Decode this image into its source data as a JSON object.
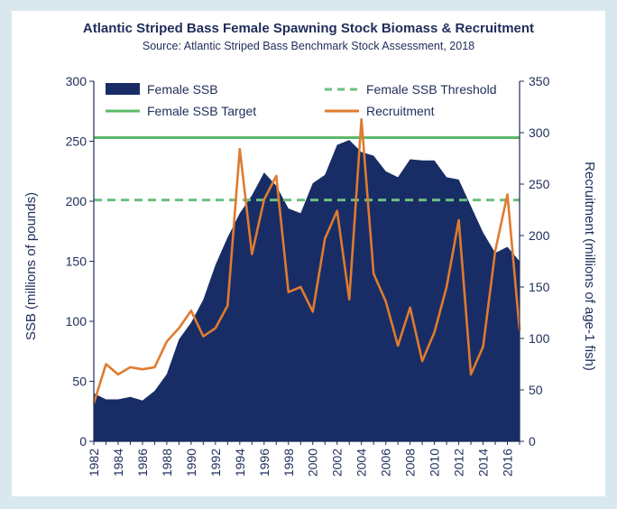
{
  "chart_data": {
    "type": "area",
    "title": "Atlantic Striped Bass Female Spawning Stock Biomass & Recruitment",
    "subtitle": "Source: Atlantic Striped  Bass Benchmark Stock Assessment, 2018",
    "xlabel": "",
    "ylabel": "SSB (millions of pounds)",
    "y2label": "Recruitment (millions of age-1 fish)",
    "ylim": [
      0,
      300
    ],
    "y2lim": [
      0,
      350
    ],
    "yticks": [
      0,
      50,
      100,
      150,
      200,
      250,
      300
    ],
    "y2ticks": [
      0,
      50,
      100,
      150,
      200,
      250,
      300,
      350
    ],
    "x": [
      1982,
      1983,
      1984,
      1985,
      1986,
      1987,
      1988,
      1989,
      1990,
      1991,
      1992,
      1993,
      1994,
      1995,
      1996,
      1997,
      1998,
      1999,
      2000,
      2001,
      2002,
      2003,
      2004,
      2005,
      2006,
      2007,
      2008,
      2009,
      2010,
      2011,
      2012,
      2013,
      2014,
      2015,
      2016,
      2017
    ],
    "xticks": [
      1982,
      1984,
      1986,
      1988,
      1990,
      1992,
      1994,
      1996,
      1998,
      2000,
      2002,
      2004,
      2006,
      2008,
      2010,
      2012,
      2014,
      2016
    ],
    "xlim": [
      1982,
      2017
    ],
    "grid": false,
    "legend_position": "top",
    "series": [
      {
        "name": "Female SSB",
        "type": "area",
        "axis": "left",
        "color": "#182d66",
        "values": [
          40,
          35,
          35,
          37,
          34,
          42,
          56,
          85,
          99,
          118,
          147,
          170,
          190,
          205,
          224,
          213,
          194,
          190,
          215,
          222,
          247,
          251,
          241,
          238,
          225,
          220,
          235,
          234,
          234,
          220,
          218,
          196,
          174,
          157,
          162,
          150
        ]
      },
      {
        "name": "Recruitment",
        "type": "line",
        "axis": "right",
        "color": "#e07b2e",
        "values": [
          37,
          75,
          65,
          72,
          70,
          72,
          97,
          110,
          127,
          102,
          110,
          132,
          284,
          182,
          235,
          258,
          145,
          150,
          126,
          197,
          224,
          138,
          313,
          163,
          136,
          93,
          130,
          78,
          106,
          150,
          215,
          65,
          92,
          185,
          240,
          108
        ]
      }
    ],
    "reference_lines": [
      {
        "name": "Female SSB Threshold",
        "value": 201,
        "axis": "left",
        "style": "dashed",
        "color": "#6cbf7e"
      },
      {
        "name": "Female SSB Target",
        "value": 253,
        "axis": "left",
        "style": "solid",
        "color": "#5cb86a"
      }
    ]
  }
}
